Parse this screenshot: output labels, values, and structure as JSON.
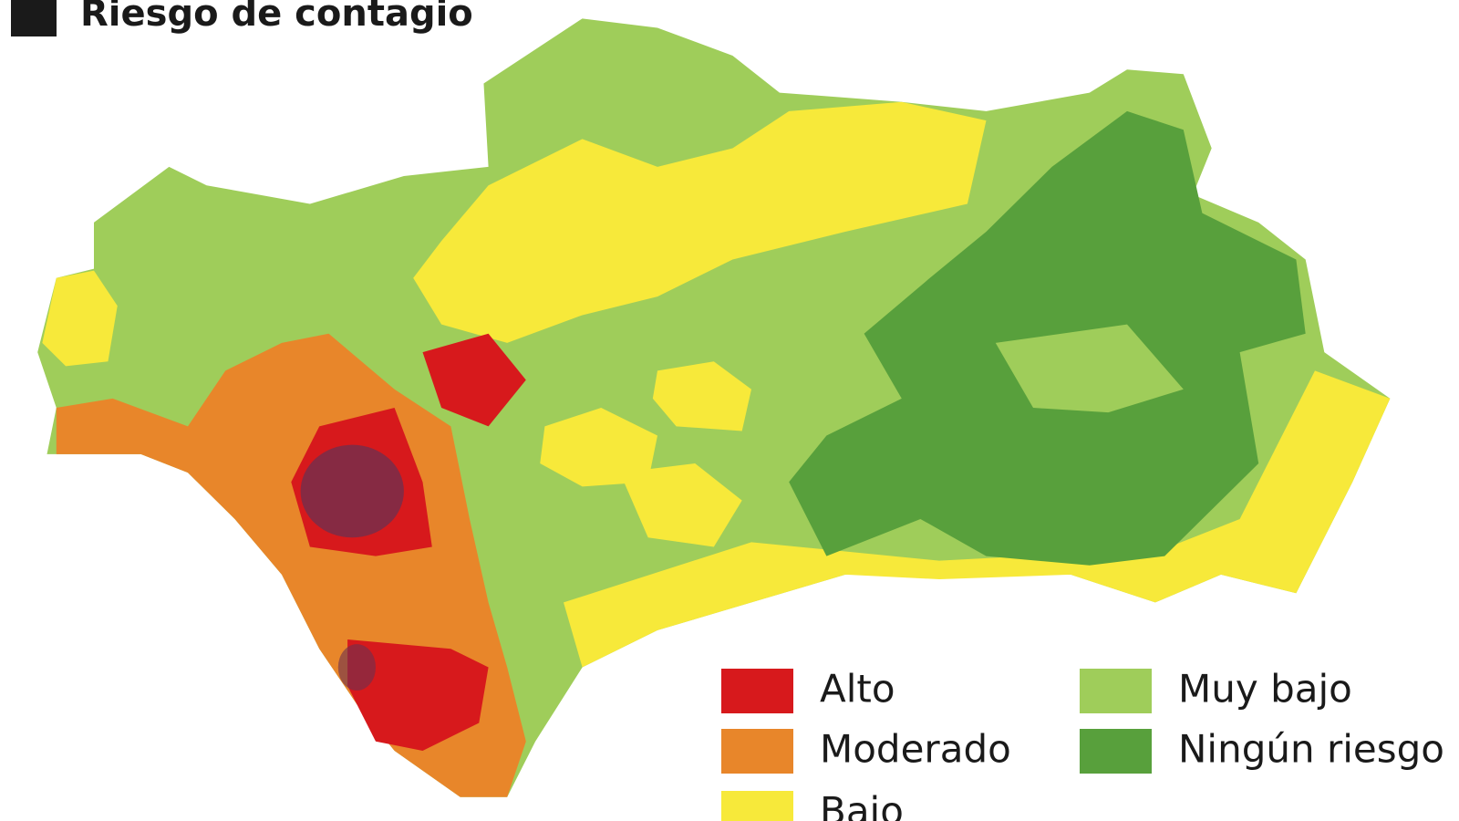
{
  "header": {
    "title": "Riesgo de contagio"
  },
  "legend": [
    {
      "label": "Alto",
      "color": "#d7191c"
    },
    {
      "label": "Moderado",
      "color": "#e8862a"
    },
    {
      "label": "Bajo",
      "color": "#f7e93a"
    },
    {
      "label": "Muy bajo",
      "color": "#9fcd5a"
    },
    {
      "label": "Ningún riesgo",
      "color": "#58a03c"
    }
  ]
}
